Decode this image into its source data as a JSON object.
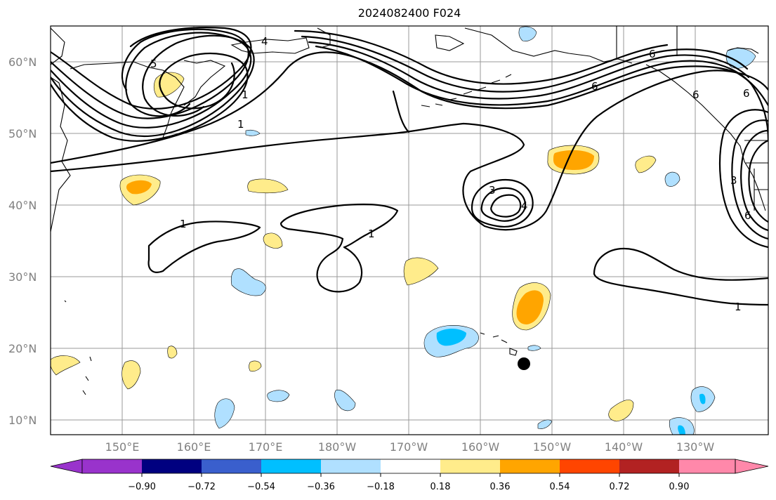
{
  "title": "2024082400 F024",
  "lat_labels": [
    "60°N",
    "50°N",
    "40°N",
    "30°N",
    "20°N",
    "10°N"
  ],
  "lon_labels": [
    "150°E",
    "160°E",
    "170°E",
    "180°W",
    "170°W",
    "160°W",
    "150°W",
    "140°W",
    "130°W"
  ],
  "colorbar": {
    "tick_labels": [
      "−0.90",
      "−0.72",
      "−0.54",
      "−0.36",
      "−0.18",
      "0.18",
      "0.36",
      "0.54",
      "0.72",
      "0.90"
    ],
    "colors": [
      "#9933cc",
      "#000080",
      "#3a5fcd",
      "#00bfff",
      "#b0e0ff",
      "#ffffff",
      "#ffec8b",
      "#ffa500",
      "#ff4500",
      "#b22222",
      "#ff88aa"
    ]
  },
  "contour_labels": [
    "4",
    "5",
    "1",
    "1",
    "1",
    "1",
    "6",
    "6",
    "6",
    "3",
    "4",
    "1",
    "3",
    "6",
    "6"
  ],
  "colors": {
    "light_blue": "#b0e0ff",
    "cyan": "#00bfff",
    "light_yellow": "#ffec8b",
    "orange": "#ffa500"
  },
  "marker": {
    "lat": 18,
    "lon": -154
  }
}
